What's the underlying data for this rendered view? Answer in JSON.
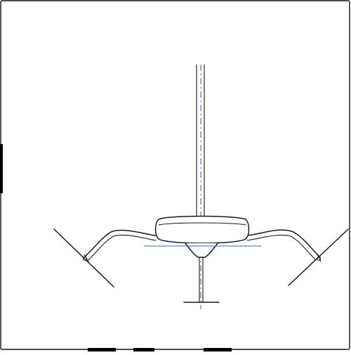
{
  "drawing": {
    "subject": "",
    "colors": {
      "background": "#ffffff",
      "line": "#1a1a1a",
      "construction_line": "#3a5bd9"
    },
    "parts": [
      "frame",
      "vertical-rod",
      "center-body",
      "left-arm",
      "right-arm",
      "left-blade",
      "right-blade",
      "base-post"
    ]
  }
}
